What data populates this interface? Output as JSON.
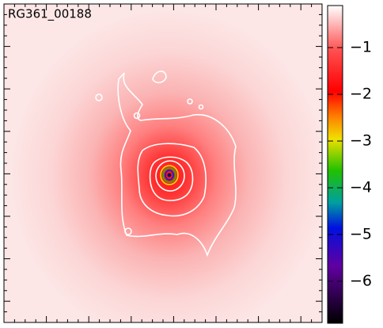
{
  "image": {
    "label": "RG361_00188"
  },
  "colorbar": {
    "clim": [
      -6.9,
      -0.1
    ],
    "ticks": [
      {
        "value": -1,
        "label": "−1"
      },
      {
        "value": -2,
        "label": "−2"
      },
      {
        "value": -3,
        "label": "−3"
      },
      {
        "value": -4,
        "label": "−4"
      },
      {
        "value": -5,
        "label": "−5"
      },
      {
        "value": -6,
        "label": "−6"
      }
    ]
  }
}
